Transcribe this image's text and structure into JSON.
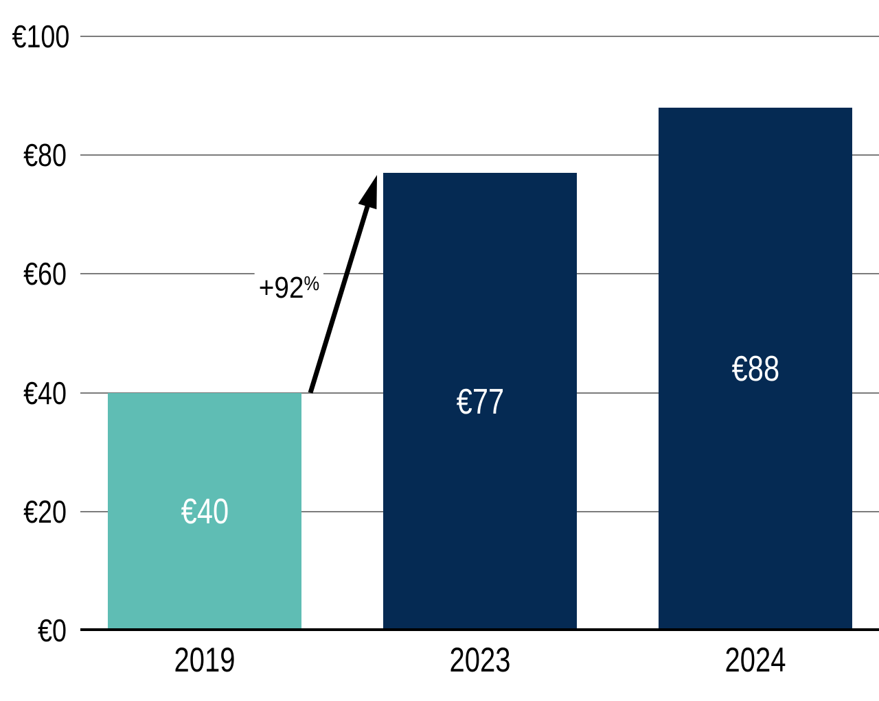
{
  "chart_data": {
    "type": "bar",
    "title": "",
    "categories": [
      "2019",
      "2023",
      "2024"
    ],
    "values": [
      40,
      77,
      88
    ],
    "bar_value_labels": [
      "€40",
      "€77",
      "€88"
    ],
    "bar_colors": [
      "#5FBDB4",
      "#052A53",
      "#052A53"
    ],
    "bar_label_color": "#FFFFFF",
    "y_axis": {
      "range": [
        0,
        100
      ],
      "ticks": [
        {
          "value": 0,
          "label": "€0"
        },
        {
          "value": 20,
          "label": "€20"
        },
        {
          "value": 40,
          "label": "€40"
        },
        {
          "value": 60,
          "label": "€60"
        },
        {
          "value": 80,
          "label": "€80"
        },
        {
          "value": 100,
          "label": "€100"
        }
      ],
      "gridlines": true,
      "gridline_color": "#7B7B7B",
      "axis_line_color": "#000000"
    },
    "xlabel": "",
    "ylabel": "",
    "legend": "none",
    "annotation": {
      "text": "+92%",
      "text_main": "+92",
      "text_percent": "%",
      "from_category": "2019",
      "to_category": "2023",
      "arrow_color": "#000000"
    }
  }
}
